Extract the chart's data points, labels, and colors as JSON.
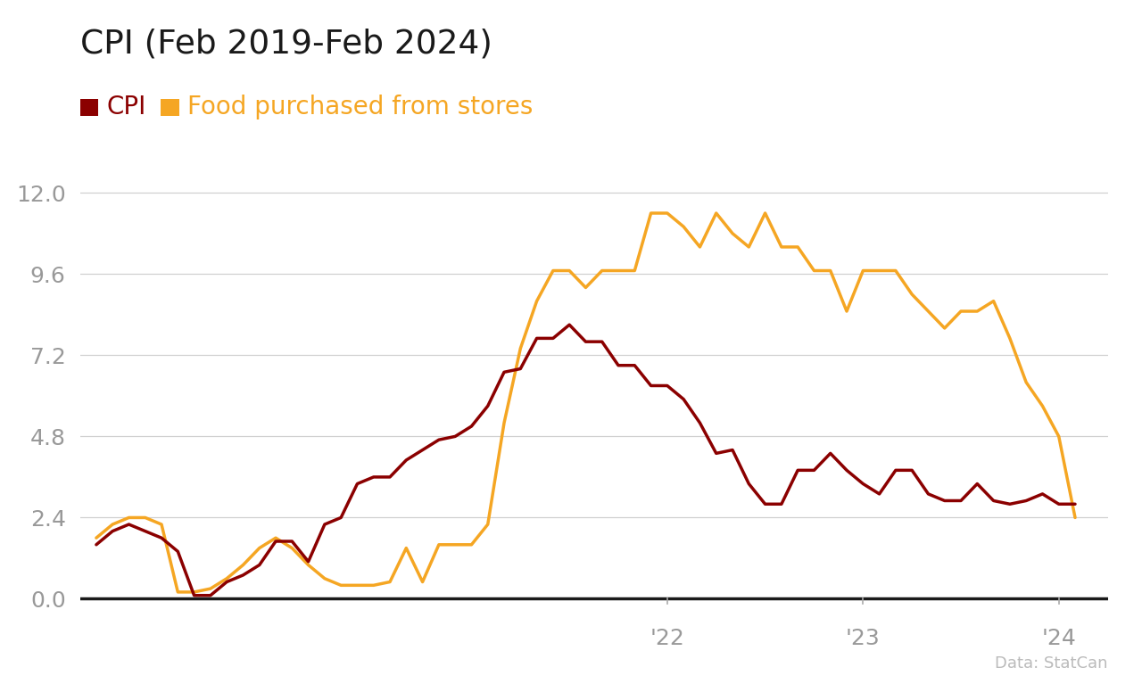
{
  "title": "CPI (Feb 2019-Feb 2024)",
  "legend_labels": [
    "CPI",
    "Food purchased from stores"
  ],
  "cpi_color": "#8B0000",
  "food_color": "#F5A623",
  "background_color": "#ffffff",
  "title_fontsize": 27,
  "legend_fontsize": 20,
  "tick_fontsize": 18,
  "source_text": "Data: StatCan",
  "yticks": [
    0,
    2.4,
    4.8,
    7.2,
    9.6,
    12.0
  ],
  "ylim": [
    -0.3,
    13.2
  ],
  "xtick_labels": [
    "'22",
    "'23",
    "'24"
  ],
  "cpi_values": [
    1.6,
    2.0,
    2.2,
    2.0,
    1.8,
    1.4,
    0.1,
    0.1,
    0.5,
    0.7,
    1.0,
    1.7,
    1.7,
    1.1,
    2.2,
    2.4,
    3.4,
    3.6,
    3.6,
    4.1,
    4.4,
    4.7,
    4.8,
    5.1,
    5.7,
    6.7,
    6.8,
    7.7,
    7.7,
    8.1,
    7.6,
    7.6,
    6.9,
    6.9,
    6.3,
    6.3,
    5.9,
    5.2,
    4.3,
    4.4,
    3.4,
    2.8,
    2.8,
    3.8,
    3.8,
    4.3,
    3.8,
    3.4,
    3.1,
    3.8,
    3.8,
    3.1,
    2.9,
    2.9,
    3.4,
    2.9,
    2.8,
    2.9,
    3.1,
    2.8,
    2.8
  ],
  "food_values": [
    1.8,
    2.2,
    2.4,
    2.4,
    2.2,
    0.2,
    0.2,
    0.3,
    0.6,
    1.0,
    1.5,
    1.8,
    1.5,
    1.0,
    0.6,
    0.4,
    0.4,
    0.4,
    0.5,
    1.5,
    0.5,
    1.6,
    1.6,
    1.6,
    2.2,
    5.2,
    7.4,
    8.8,
    9.7,
    9.7,
    9.2,
    9.7,
    9.7,
    9.7,
    11.4,
    11.4,
    11.0,
    10.4,
    11.4,
    10.8,
    10.4,
    11.4,
    10.4,
    10.4,
    9.7,
    9.7,
    8.5,
    9.7,
    9.7,
    9.7,
    9.0,
    8.5,
    8.0,
    8.5,
    8.5,
    8.8,
    7.7,
    6.4,
    5.7,
    4.8,
    2.4
  ]
}
